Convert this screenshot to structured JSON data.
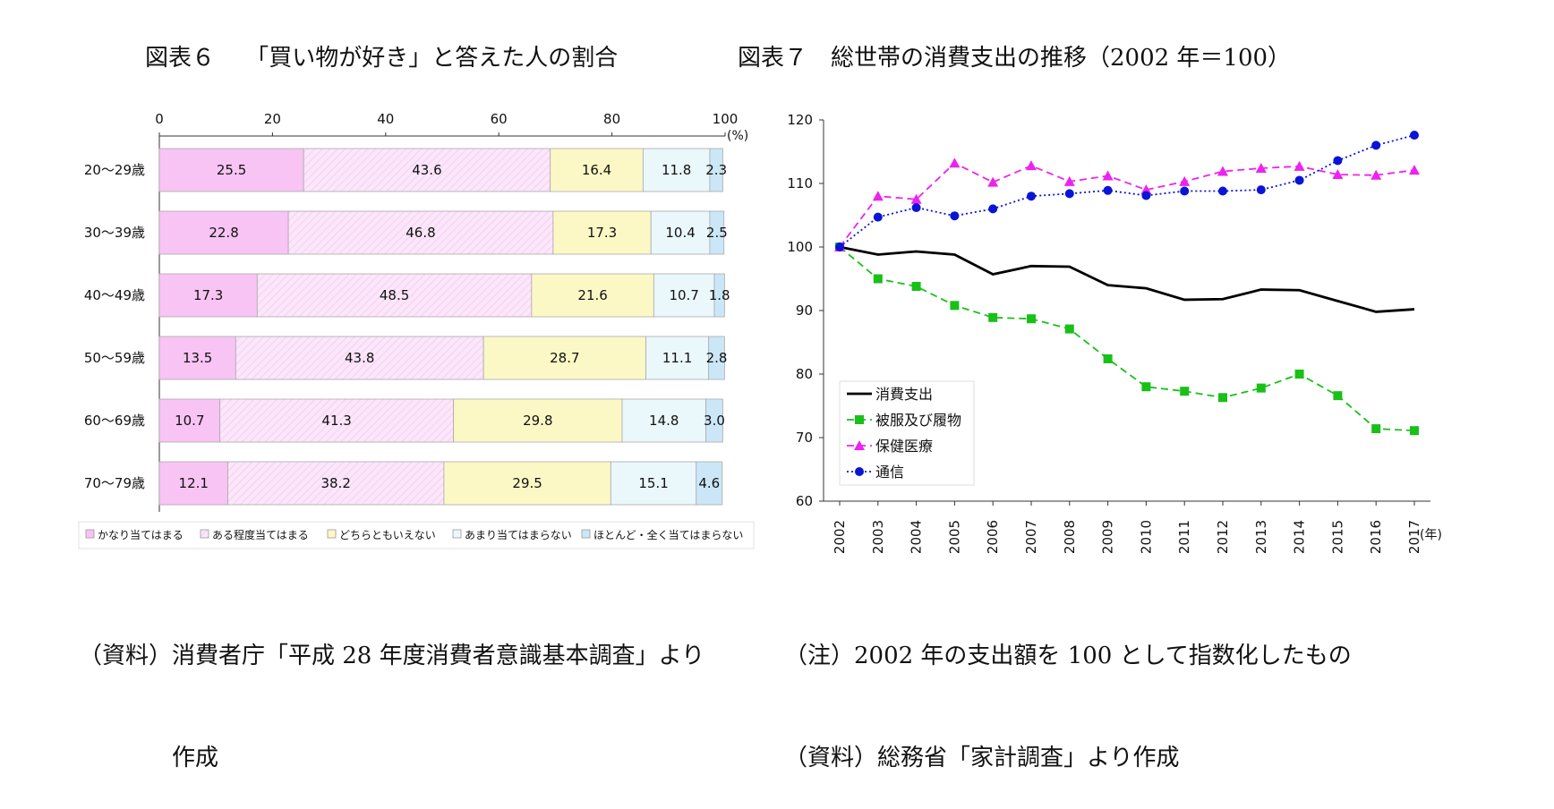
{
  "left_figure": {
    "title": "図表６　 「買い物が好き」と答えた人の割合",
    "source_lines": [
      "（資料）消費者庁「平成 28 年度消費者意識基本調査」より",
      "　　　　作成"
    ]
  },
  "right_figure": {
    "title": "図表７　総世帯の消費支出の推移（2002 年＝100）",
    "note_lines": [
      "（注）2002 年の支出額を 100 として指数化したもの",
      "（資料）総務省「家計調査」より作成"
    ]
  },
  "chart_data": [
    {
      "type": "bar",
      "orientation": "horizontal",
      "stacked": true,
      "categories": [
        "20〜29歳",
        "30〜39歳",
        "40〜49歳",
        "50〜59歳",
        "60〜69歳",
        "70〜79歳"
      ],
      "series": [
        {
          "name": "かなり当てはまる",
          "values": [
            25.5,
            22.8,
            17.3,
            13.5,
            10.7,
            12.1
          ],
          "color": "#f8c4f4",
          "label_color": "#111111"
        },
        {
          "name": "ある程度当てはまる",
          "values": [
            43.6,
            46.8,
            48.5,
            43.8,
            41.3,
            38.2
          ],
          "color": "#fbe6fa",
          "label_color": "#111111"
        },
        {
          "name": "どちらともいえない",
          "values": [
            16.4,
            17.3,
            21.6,
            28.7,
            29.8,
            29.5
          ],
          "color": "#fcf8c6",
          "label_color": "#111111"
        },
        {
          "name": "あまり当てはまらない",
          "values": [
            11.8,
            10.4,
            10.7,
            11.1,
            14.8,
            15.1
          ],
          "color": "#eaf7fb",
          "label_color": "#111111"
        },
        {
          "name": "ほとんど・全く当てはまらない",
          "values": [
            2.3,
            2.5,
            1.8,
            2.8,
            3.0,
            4.6
          ],
          "color": "#cbe7f7",
          "label_color": "#111111"
        }
      ],
      "data_labels": [
        [
          "25.5",
          "43.6",
          "16.4",
          "11.8",
          "2.3"
        ],
        [
          "22.8",
          "46.8",
          "17.3",
          "10.4",
          "2.5"
        ],
        [
          "17.3",
          "48.5",
          "21.6",
          "10.7",
          "1.8"
        ],
        [
          "13.5",
          "43.8",
          "28.7",
          "11.1",
          "2.8"
        ],
        [
          "10.7",
          "41.3",
          "29.8",
          "14.8",
          "3.0"
        ],
        [
          "12.1",
          "38.2",
          "29.5",
          "15.1",
          "4.6"
        ]
      ],
      "xlim": [
        0,
        100
      ],
      "xticks": [
        "0",
        "20",
        "40",
        "60",
        "80",
        "100"
      ],
      "xunit": "(%)",
      "legend_position": "bottom"
    },
    {
      "type": "line",
      "x": [
        "2002",
        "2003",
        "2004",
        "2005",
        "2006",
        "2007",
        "2008",
        "2009",
        "2010",
        "2011",
        "2012",
        "2013",
        "2014",
        "2015",
        "2016",
        "2017"
      ],
      "xunit": "(年)",
      "series": [
        {
          "name": "消費支出",
          "color": "#000000",
          "style": "solid",
          "marker": "none",
          "values": [
            100,
            98.8,
            99.3,
            98.8,
            95.7,
            97,
            96.9,
            94,
            93.5,
            91.7,
            91.8,
            93.3,
            93.2,
            91.5,
            89.8,
            90.2
          ]
        },
        {
          "name": "被服及び履物",
          "color": "#18c018",
          "style": "dashed",
          "marker": "square",
          "values": [
            100,
            95,
            93.8,
            90.8,
            88.9,
            88.7,
            87.1,
            82.4,
            78,
            77.3,
            76.3,
            77.8,
            80,
            76.6,
            71.4,
            71.1
          ]
        },
        {
          "name": "保健医療",
          "color": "#ee22ee",
          "style": "dashed",
          "marker": "triangle",
          "values": [
            100,
            108,
            107.5,
            113.2,
            110.2,
            112.8,
            110.3,
            111.2,
            109,
            110.3,
            111.9,
            112.4,
            112.7,
            111.4,
            111.3,
            112.1
          ]
        },
        {
          "name": "通信",
          "color": "#0a14d6",
          "style": "dotted",
          "marker": "circle",
          "values": [
            100,
            104.7,
            106.2,
            104.9,
            106,
            108,
            108.4,
            108.9,
            108.1,
            108.8,
            108.8,
            109,
            110.5,
            113.6,
            116,
            117.6
          ]
        }
      ],
      "ylim": [
        60,
        120
      ],
      "yticks": [
        "60",
        "70",
        "80",
        "90",
        "100",
        "110",
        "120"
      ],
      "legend_position": "bottom-left"
    }
  ]
}
